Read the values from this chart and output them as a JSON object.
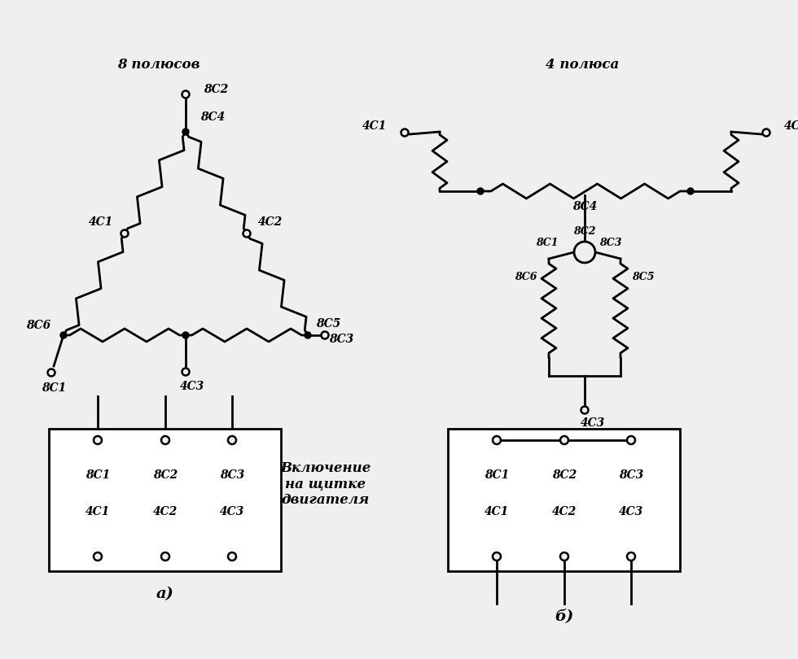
{
  "bg_color": "#efefef",
  "line_color": "#000000",
  "line_width": 2.0,
  "label_8poles": "8 полюсов",
  "label_4poles": "4 полюса",
  "label_inclusion": "Включение\nна щитке\nдвигателя",
  "label_a": "а)",
  "label_b": "б)"
}
